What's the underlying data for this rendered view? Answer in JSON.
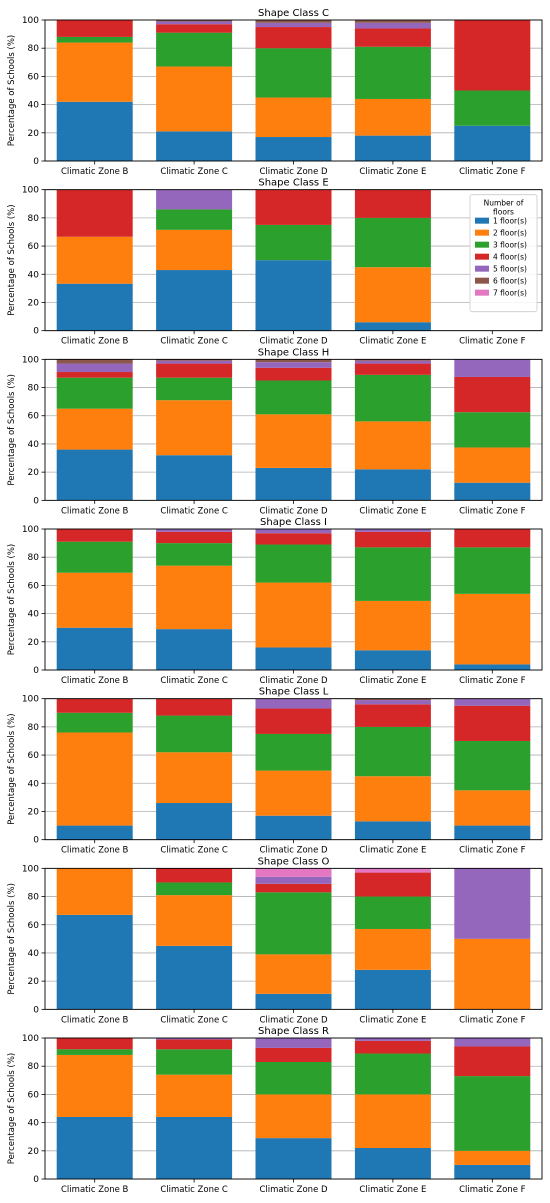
{
  "colors": {
    "1 floor(s)": "#1f77b4",
    "2 floor(s)": "#ff7f0e",
    "3 floor(s)": "#2ca02c",
    "4 floor(s)": "#d62728",
    "5 floor(s)": "#9467bd",
    "6 floor(s)": "#8c564b",
    "7 floor(s)": "#e377c2"
  },
  "legend": {
    "title": "Number of\nfloors",
    "panel": 1,
    "placement": "upper-right",
    "entries": [
      "1 floor(s)",
      "2 floor(s)",
      "3 floor(s)",
      "4 floor(s)",
      "5 floor(s)",
      "6 floor(s)",
      "7 floor(s)"
    ]
  },
  "chart_data": [
    {
      "type": "bar",
      "stacked": true,
      "title": "Shape Class C",
      "ylabel": "Percentage of Schools (%)",
      "ylim": [
        0,
        100
      ],
      "yticks": [
        0,
        20,
        40,
        60,
        80,
        100
      ],
      "grid": "y",
      "categories": [
        "Climatic Zone B",
        "Climatic Zone C",
        "Climatic Zone D",
        "Climatic Zone E",
        "Climatic Zone F"
      ],
      "series": [
        {
          "name": "1 floor(s)",
          "values": [
            42,
            21,
            17,
            18,
            25
          ]
        },
        {
          "name": "2 floor(s)",
          "values": [
            42,
            46,
            28,
            26,
            0
          ]
        },
        {
          "name": "3 floor(s)",
          "values": [
            4,
            24,
            35,
            37,
            25
          ]
        },
        {
          "name": "4 floor(s)",
          "values": [
            12,
            6,
            15,
            13,
            50
          ]
        },
        {
          "name": "5 floor(s)",
          "values": [
            0,
            2,
            3,
            4,
            0
          ]
        },
        {
          "name": "6 floor(s)",
          "values": [
            0,
            1,
            2,
            2,
            0
          ]
        },
        {
          "name": "7 floor(s)",
          "values": [
            0,
            0,
            0,
            0,
            0
          ]
        }
      ]
    },
    {
      "type": "bar",
      "stacked": true,
      "title": "Shape Class E",
      "ylabel": "Percentage of Schools (%)",
      "ylim": [
        0,
        100
      ],
      "yticks": [
        0,
        20,
        40,
        60,
        80,
        100
      ],
      "grid": "y",
      "categories": [
        "Climatic Zone B",
        "Climatic Zone C",
        "Climatic Zone D",
        "Climatic Zone E",
        "Climatic Zone F"
      ],
      "series": [
        {
          "name": "1 floor(s)",
          "values": [
            33.3,
            43,
            50,
            6,
            0
          ]
        },
        {
          "name": "2 floor(s)",
          "values": [
            33.3,
            28.5,
            0,
            39,
            0
          ]
        },
        {
          "name": "3 floor(s)",
          "values": [
            0,
            14.5,
            25,
            35,
            0
          ]
        },
        {
          "name": "4 floor(s)",
          "values": [
            33.4,
            0,
            25,
            20,
            0
          ]
        },
        {
          "name": "5 floor(s)",
          "values": [
            0,
            14,
            0,
            0,
            0
          ]
        },
        {
          "name": "6 floor(s)",
          "values": [
            0,
            0,
            0,
            0,
            0
          ]
        },
        {
          "name": "7 floor(s)",
          "values": [
            0,
            0,
            0,
            0,
            0
          ]
        }
      ]
    },
    {
      "type": "bar",
      "stacked": true,
      "title": "Shape Class H",
      "ylabel": "Percentage of Schools (%)",
      "ylim": [
        0,
        100
      ],
      "yticks": [
        0,
        20,
        40,
        60,
        80,
        100
      ],
      "grid": "y",
      "categories": [
        "Climatic Zone B",
        "Climatic Zone C",
        "Climatic Zone D",
        "Climatic Zone E",
        "Climatic Zone F"
      ],
      "series": [
        {
          "name": "1 floor(s)",
          "values": [
            36,
            32,
            23,
            22,
            12.5
          ]
        },
        {
          "name": "2 floor(s)",
          "values": [
            29,
            39,
            38,
            34,
            25
          ]
        },
        {
          "name": "3 floor(s)",
          "values": [
            22,
            16,
            24,
            33,
            25
          ]
        },
        {
          "name": "4 floor(s)",
          "values": [
            4,
            10,
            9,
            8,
            25
          ]
        },
        {
          "name": "5 floor(s)",
          "values": [
            6,
            2,
            4,
            2,
            12.5
          ]
        },
        {
          "name": "6 floor(s)",
          "values": [
            3,
            1,
            2,
            1,
            0
          ]
        },
        {
          "name": "7 floor(s)",
          "values": [
            0,
            0,
            0,
            0,
            0
          ]
        }
      ]
    },
    {
      "type": "bar",
      "stacked": true,
      "title": "Shape Class I",
      "ylabel": "Percentage of Schools (%)",
      "ylim": [
        0,
        100
      ],
      "yticks": [
        0,
        20,
        40,
        60,
        80,
        100
      ],
      "grid": "y",
      "categories": [
        "Climatic Zone B",
        "Climatic Zone C",
        "Climatic Zone D",
        "Climatic Zone E",
        "Climatic Zone F"
      ],
      "series": [
        {
          "name": "1 floor(s)",
          "values": [
            30,
            29,
            16,
            14,
            4
          ]
        },
        {
          "name": "2 floor(s)",
          "values": [
            39,
            45,
            46,
            35,
            50
          ]
        },
        {
          "name": "3 floor(s)",
          "values": [
            22,
            16,
            27,
            38,
            33
          ]
        },
        {
          "name": "4 floor(s)",
          "values": [
            9,
            8,
            8,
            11,
            13
          ]
        },
        {
          "name": "5 floor(s)",
          "values": [
            0,
            2,
            3,
            2,
            0
          ]
        },
        {
          "name": "6 floor(s)",
          "values": [
            0,
            0,
            0,
            0,
            0
          ]
        },
        {
          "name": "7 floor(s)",
          "values": [
            0,
            0,
            0,
            0,
            0
          ]
        }
      ]
    },
    {
      "type": "bar",
      "stacked": true,
      "title": "Shape Class L",
      "ylabel": "Percentage of Schools (%)",
      "ylim": [
        0,
        100
      ],
      "yticks": [
        0,
        20,
        40,
        60,
        80,
        100
      ],
      "grid": "y",
      "categories": [
        "Climatic Zone B",
        "Climatic Zone C",
        "Climatic Zone D",
        "Climatic Zone E",
        "Climatic Zone F"
      ],
      "series": [
        {
          "name": "1 floor(s)",
          "values": [
            10,
            26,
            17,
            13,
            10
          ]
        },
        {
          "name": "2 floor(s)",
          "values": [
            66,
            36,
            32,
            32,
            25
          ]
        },
        {
          "name": "3 floor(s)",
          "values": [
            14,
            26,
            26,
            35,
            35
          ]
        },
        {
          "name": "4 floor(s)",
          "values": [
            10,
            12,
            18,
            16,
            25
          ]
        },
        {
          "name": "5 floor(s)",
          "values": [
            0,
            0,
            7,
            3,
            5
          ]
        },
        {
          "name": "6 floor(s)",
          "values": [
            0,
            0,
            0,
            1,
            0
          ]
        },
        {
          "name": "7 floor(s)",
          "values": [
            0,
            0,
            0,
            0,
            0
          ]
        }
      ]
    },
    {
      "type": "bar",
      "stacked": true,
      "title": "Shape Class O",
      "ylabel": "Percentage of Schools (%)",
      "ylim": [
        0,
        100
      ],
      "yticks": [
        0,
        20,
        40,
        60,
        80,
        100
      ],
      "grid": "y",
      "categories": [
        "Climatic Zone B",
        "Climatic Zone C",
        "Climatic Zone D",
        "Climatic Zone E",
        "Climatic Zone F"
      ],
      "series": [
        {
          "name": "1 floor(s)",
          "values": [
            67,
            45,
            11,
            28,
            0
          ]
        },
        {
          "name": "2 floor(s)",
          "values": [
            33,
            36,
            28,
            29,
            50
          ]
        },
        {
          "name": "3 floor(s)",
          "values": [
            0,
            9,
            44,
            23,
            0
          ]
        },
        {
          "name": "4 floor(s)",
          "values": [
            0,
            10,
            6,
            17,
            0
          ]
        },
        {
          "name": "5 floor(s)",
          "values": [
            0,
            0,
            5,
            0,
            50
          ]
        },
        {
          "name": "6 floor(s)",
          "values": [
            0,
            0,
            0,
            0,
            0
          ]
        },
        {
          "name": "7 floor(s)",
          "values": [
            0,
            0,
            6,
            3,
            0
          ]
        }
      ]
    },
    {
      "type": "bar",
      "stacked": true,
      "title": "Shape Class R",
      "ylabel": "Percentage of Schools (%)",
      "ylim": [
        0,
        100
      ],
      "yticks": [
        0,
        20,
        40,
        60,
        80,
        100
      ],
      "grid": "y",
      "categories": [
        "Climatic Zone B",
        "Climatic Zone C",
        "Climatic Zone D",
        "Climatic Zone E",
        "Climatic Zone F"
      ],
      "series": [
        {
          "name": "1 floor(s)",
          "values": [
            44,
            44,
            29,
            22,
            10
          ]
        },
        {
          "name": "2 floor(s)",
          "values": [
            44,
            30,
            31,
            38,
            10
          ]
        },
        {
          "name": "3 floor(s)",
          "values": [
            4,
            18,
            23,
            29,
            53
          ]
        },
        {
          "name": "4 floor(s)",
          "values": [
            8,
            7,
            10,
            9,
            21
          ]
        },
        {
          "name": "5 floor(s)",
          "values": [
            0,
            1,
            7,
            2,
            6
          ]
        },
        {
          "name": "6 floor(s)",
          "values": [
            0,
            0,
            0,
            0,
            0
          ]
        },
        {
          "name": "7 floor(s)",
          "values": [
            0,
            0,
            0,
            0,
            0
          ]
        }
      ]
    }
  ]
}
